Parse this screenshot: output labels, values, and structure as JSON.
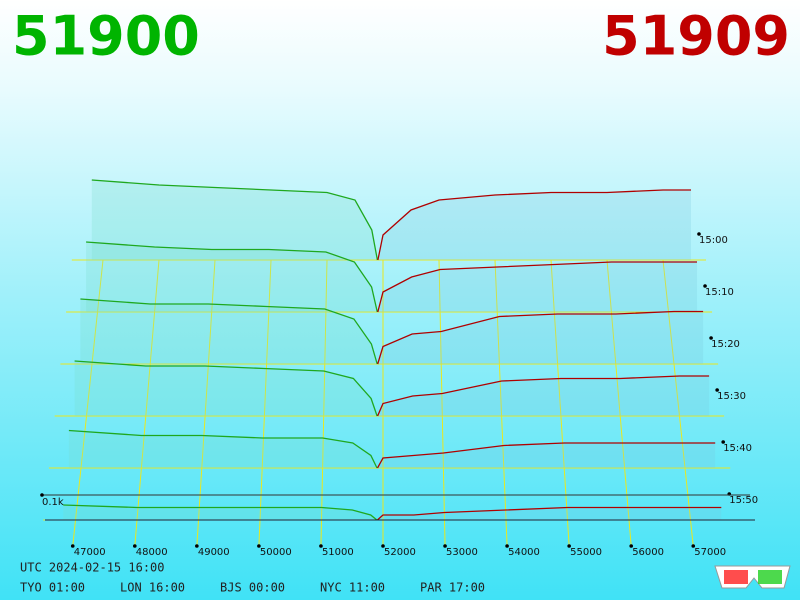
{
  "header": {
    "bid": "51900",
    "ask": "51909"
  },
  "depth": {
    "price_ticks": [
      47000,
      48000,
      49000,
      50000,
      51000,
      52000,
      53000,
      54000,
      55000,
      56000,
      57000
    ],
    "time_ticks": [
      "15:00",
      "15:10",
      "15:20",
      "15:30",
      "15:40",
      "15:50"
    ],
    "volume_tick": {
      "value": 0.1,
      "label": "0.1k"
    },
    "bid_color": "#1fa81f",
    "ask_color": "#b00000",
    "bid_prices": [
      46800,
      48000,
      49000,
      50000,
      51000,
      51500,
      51800,
      51900
    ],
    "ask_prices": [
      51909,
      52000,
      52500,
      53000,
      54000,
      55000,
      56000,
      57000,
      57500
    ],
    "rows": [
      {
        "bids": [
          0.32,
          0.3,
          0.29,
          0.28,
          0.27,
          0.24,
          0.12,
          0.0
        ],
        "asks": [
          0.0,
          0.1,
          0.2,
          0.24,
          0.26,
          0.27,
          0.27,
          0.28,
          0.28
        ]
      },
      {
        "bids": [
          0.28,
          0.26,
          0.25,
          0.25,
          0.24,
          0.2,
          0.1,
          0.0
        ],
        "asks": [
          0.0,
          0.08,
          0.14,
          0.17,
          0.18,
          0.19,
          0.2,
          0.2,
          0.2
        ]
      },
      {
        "bids": [
          0.26,
          0.24,
          0.24,
          0.23,
          0.22,
          0.18,
          0.08,
          0.0
        ],
        "asks": [
          0.0,
          0.07,
          0.12,
          0.13,
          0.19,
          0.2,
          0.2,
          0.21,
          0.21
        ]
      },
      {
        "bids": [
          0.22,
          0.2,
          0.2,
          0.19,
          0.18,
          0.15,
          0.07,
          0.0
        ],
        "asks": [
          0.0,
          0.05,
          0.08,
          0.09,
          0.14,
          0.15,
          0.15,
          0.16,
          0.16
        ]
      },
      {
        "bids": [
          0.15,
          0.13,
          0.13,
          0.12,
          0.12,
          0.1,
          0.05,
          0.0
        ],
        "asks": [
          0.0,
          0.04,
          0.05,
          0.06,
          0.09,
          0.1,
          0.1,
          0.1,
          0.1
        ]
      },
      {
        "bids": [
          0.06,
          0.05,
          0.05,
          0.05,
          0.05,
          0.04,
          0.02,
          0.0
        ],
        "asks": [
          0.0,
          0.02,
          0.02,
          0.03,
          0.04,
          0.05,
          0.05,
          0.05,
          0.05
        ]
      }
    ]
  },
  "footer": {
    "utc": "UTC 2024-02-15 16:00",
    "zones": [
      "TYO 01:00",
      "LON 16:00",
      "BJS 00:00",
      "NYC 11:00",
      "PAR 17:00"
    ]
  }
}
